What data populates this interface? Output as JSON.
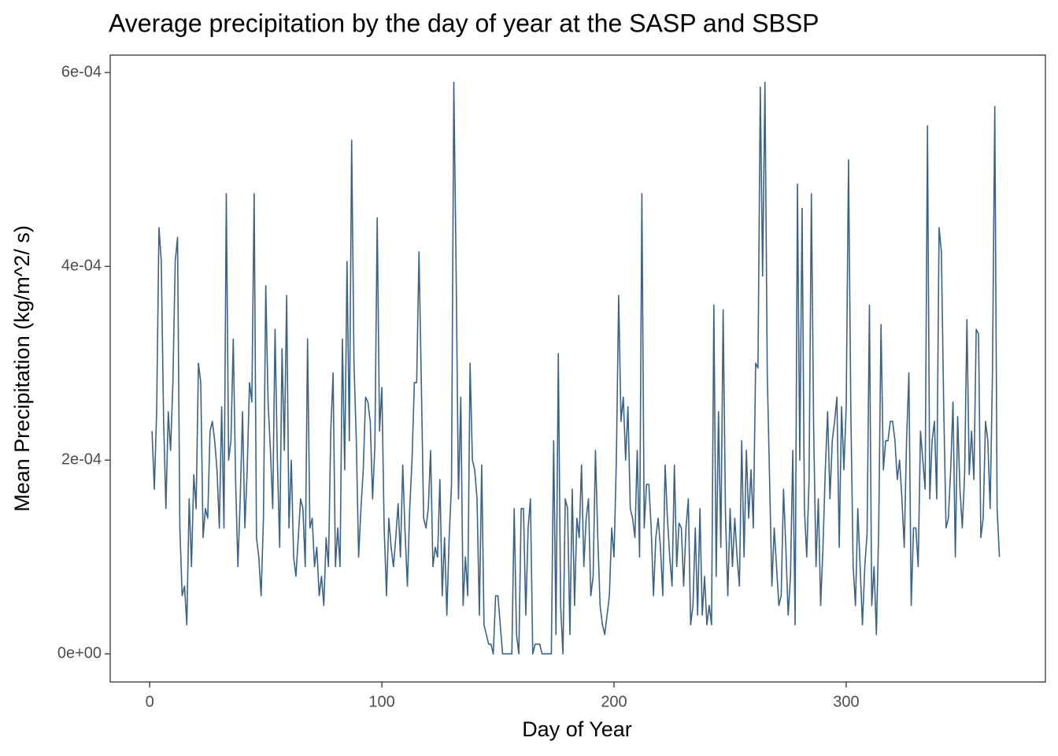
{
  "chart_data": {
    "type": "line",
    "title": "Average precipitation by the day of year at the SASP and SBSP",
    "x_label": "Day of Year",
    "y_label": "Mean Precipitation (kg/m^2/ s)",
    "color": "#3b6387",
    "xlim": [
      -17,
      385.8
    ],
    "ylim": [
      -2.9e-05,
      0.000618
    ],
    "xticks": [
      0,
      100,
      200,
      300
    ],
    "yticks": [
      {
        "value": 0,
        "label": "0e+00"
      },
      {
        "value": 0.0002,
        "label": "2e-04"
      },
      {
        "value": 0.0004,
        "label": "4e-04"
      },
      {
        "value": 0.0006,
        "label": "6e-04"
      }
    ],
    "grid": false,
    "x": [
      1,
      2,
      3,
      4,
      5,
      6,
      7,
      8,
      9,
      10,
      11,
      12,
      13,
      14,
      15,
      16,
      17,
      18,
      19,
      20,
      21,
      22,
      23,
      24,
      25,
      26,
      27,
      28,
      29,
      30,
      31,
      32,
      33,
      34,
      35,
      36,
      37,
      38,
      39,
      40,
      41,
      42,
      43,
      44,
      45,
      46,
      47,
      48,
      49,
      50,
      51,
      52,
      53,
      54,
      55,
      56,
      57,
      58,
      59,
      60,
      61,
      62,
      63,
      64,
      65,
      66,
      67,
      68,
      69,
      70,
      71,
      72,
      73,
      74,
      75,
      76,
      77,
      78,
      79,
      80,
      81,
      82,
      83,
      84,
      85,
      86,
      87,
      88,
      89,
      90,
      91,
      92,
      93,
      94,
      95,
      96,
      97,
      98,
      99,
      100,
      101,
      102,
      103,
      104,
      105,
      106,
      107,
      108,
      109,
      110,
      111,
      112,
      113,
      114,
      115,
      116,
      117,
      118,
      119,
      120,
      121,
      122,
      123,
      124,
      125,
      126,
      127,
      128,
      129,
      130,
      131,
      132,
      133,
      134,
      135,
      136,
      137,
      138,
      139,
      140,
      141,
      142,
      143,
      144,
      145,
      146,
      147,
      148,
      149,
      150,
      151,
      152,
      153,
      154,
      155,
      156,
      157,
      158,
      159,
      160,
      161,
      162,
      163,
      164,
      165,
      166,
      167,
      168,
      169,
      170,
      171,
      172,
      173,
      174,
      175,
      176,
      177,
      178,
      179,
      180,
      181,
      182,
      183,
      184,
      185,
      186,
      187,
      188,
      189,
      190,
      191,
      192,
      193,
      194,
      195,
      196,
      197,
      198,
      199,
      200,
      201,
      202,
      203,
      204,
      205,
      206,
      207,
      208,
      209,
      210,
      211,
      212,
      213,
      214,
      215,
      216,
      217,
      218,
      219,
      220,
      221,
      222,
      223,
      224,
      225,
      226,
      227,
      228,
      229,
      230,
      231,
      232,
      233,
      234,
      235,
      236,
      237,
      238,
      239,
      240,
      241,
      242,
      243,
      244,
      245,
      246,
      247,
      248,
      249,
      250,
      251,
      252,
      253,
      254,
      255,
      256,
      257,
      258,
      259,
      260,
      261,
      262,
      263,
      264,
      265,
      266,
      267,
      268,
      269,
      270,
      271,
      272,
      273,
      274,
      275,
      276,
      277,
      278,
      279,
      280,
      281,
      282,
      283,
      284,
      285,
      286,
      287,
      288,
      289,
      290,
      291,
      292,
      293,
      294,
      295,
      296,
      297,
      298,
      299,
      300,
      301,
      302,
      303,
      304,
      305,
      306,
      307,
      308,
      309,
      310,
      311,
      312,
      313,
      314,
      315,
      316,
      317,
      318,
      319,
      320,
      321,
      322,
      323,
      324,
      325,
      326,
      327,
      328,
      329,
      330,
      331,
      332,
      333,
      334,
      335,
      336,
      337,
      338,
      339,
      340,
      341,
      342,
      343,
      344,
      345,
      346,
      347,
      348,
      349,
      350,
      351,
      352,
      353,
      354,
      355,
      356,
      357,
      358,
      359,
      360,
      361,
      362,
      363,
      364,
      365,
      366
    ],
    "values": [
      0.00023,
      0.00017,
      0.00025,
      0.00044,
      0.000405,
      0.00024,
      0.00015,
      0.00025,
      0.00021,
      0.00028,
      0.000405,
      0.00043,
      0.00013,
      6e-05,
      7e-05,
      3e-05,
      0.00016,
      9e-05,
      0.000185,
      0.00015,
      0.0003,
      0.00028,
      0.00012,
      0.00015,
      0.00014,
      0.00023,
      0.00024,
      0.00022,
      0.00019,
      0.00013,
      0.000255,
      0.00013,
      0.000475,
      0.0002,
      0.00022,
      0.000325,
      0.00018,
      9e-05,
      0.00016,
      0.00025,
      0.00013,
      0.00019,
      0.00028,
      0.00026,
      0.000475,
      0.00012,
      0.0001,
      6e-05,
      0.00014,
      0.00038,
      0.00026,
      0.00021,
      0.00015,
      0.000335,
      0.0002,
      0.00011,
      0.000315,
      0.00021,
      0.00037,
      0.00013,
      0.0002,
      0.0001,
      8e-05,
      0.00012,
      0.00016,
      0.00015,
      9e-05,
      0.000325,
      0.00013,
      0.00014,
      9e-05,
      0.00011,
      6e-05,
      8e-05,
      5e-05,
      0.00012,
      9e-05,
      0.00023,
      0.00029,
      9e-05,
      0.00013,
      9e-05,
      0.000325,
      0.00019,
      0.000405,
      0.00022,
      0.00053,
      0.0003,
      0.00022,
      0.0001,
      0.00015,
      0.00019,
      0.000265,
      0.00026,
      0.00024,
      0.00016,
      0.000215,
      0.00045,
      0.00023,
      0.000275,
      0.00013,
      6e-05,
      0.00014,
      0.00011,
      9e-05,
      0.00012,
      0.000155,
      0.0001,
      0.000195,
      0.000125,
      7e-05,
      0.00015,
      0.0002,
      0.00028,
      0.00028,
      0.000415,
      0.00028,
      0.00014,
      0.00013,
      0.00015,
      0.00021,
      9e-05,
      0.00011,
      0.0001,
      0.00018,
      6e-05,
      0.00012,
      4e-05,
      0.00012,
      0.000175,
      0.00059,
      0.000395,
      0.00016,
      0.000265,
      5e-05,
      0.0001,
      6e-05,
      0.0003,
      0.0002,
      0.00019,
      0.00016,
      4e-05,
      0.000195,
      3e-05,
      2e-05,
      1e-05,
      1e-05,
      0,
      6e-05,
      6e-05,
      3e-05,
      0,
      0,
      0,
      0,
      0,
      0.00015,
      2e-05,
      0,
      0.00015,
      0.00015,
      4e-05,
      0.00013,
      0.00016,
      0,
      1e-05,
      1e-05,
      1e-05,
      0,
      0,
      0,
      0,
      0,
      0.00022,
      2e-05,
      0.00031,
      5e-05,
      0,
      0.00016,
      0.00015,
      2e-05,
      0.00017,
      5e-05,
      0.00014,
      0.00012,
      0.000195,
      9e-05,
      0.00014,
      0.00016,
      6e-05,
      8e-05,
      0.00021,
      0.00012,
      5e-05,
      3e-05,
      2e-05,
      4e-05,
      6e-05,
      0.00013,
      0.0001,
      0.0002,
      0.00037,
      0.00024,
      0.000265,
      0.0002,
      0.000255,
      0.00015,
      0.00014,
      0.00012,
      0.00021,
      0.0001,
      0.000475,
      0.00013,
      0.000175,
      0.000175,
      0.00013,
      6e-05,
      0.00012,
      0.00014,
      0.00011,
      6e-05,
      0.000195,
      0.00014,
      0.0001,
      7e-05,
      0.000195,
      9e-05,
      0.000135,
      0.00013,
      7e-05,
      0.00013,
      0.00016,
      3e-05,
      5e-05,
      0.00013,
      4e-05,
      0.00015,
      4e-05,
      8e-05,
      3e-05,
      5e-05,
      3e-05,
      0.00036,
      8e-05,
      0.00025,
      0.00011,
      0.000355,
      0.000145,
      6e-05,
      0.00015,
      9e-05,
      0.00014,
      0.0001,
      7e-05,
      0.00022,
      0.0001,
      0.00021,
      0.00014,
      0.00019,
      0.00013,
      0.0003,
      0.000295,
      0.000585,
      0.00039,
      0.00059,
      0.00029,
      0.00018,
      7e-05,
      0.00013,
      9e-05,
      5e-05,
      6e-05,
      0.00017,
      0.00011,
      4e-05,
      8e-05,
      0.00021,
      3e-05,
      0.000485,
      0.0002,
      0.00046,
      0.00015,
      0.0001,
      0.00018,
      0.000475,
      0.00023,
      9e-05,
      0.00016,
      5e-05,
      0.00011,
      0.00019,
      0.00025,
      0.00016,
      0.00022,
      0.00024,
      0.000265,
      0.00011,
      0.000255,
      0.00019,
      0.000255,
      0.00051,
      0.00025,
      9e-05,
      5e-05,
      0.00015,
      9e-05,
      3e-05,
      9e-05,
      0.000125,
      0.00036,
      5e-05,
      9e-05,
      2e-05,
      0.00013,
      0.00034,
      0.00019,
      0.00022,
      0.00022,
      0.00024,
      0.00024,
      0.00022,
      0.00018,
      0.0002,
      0.00016,
      0.00011,
      0.00022,
      0.00029,
      5e-05,
      0.00013,
      0.00013,
      9e-05,
      0.00023,
      0.0002,
      0.00017,
      0.000545,
      0.00016,
      0.00022,
      0.00024,
      0.00016,
      0.00044,
      0.000415,
      0.000255,
      0.00013,
      0.00014,
      0.00019,
      0.00026,
      0.0001,
      0.000245,
      0.00017,
      0.00013,
      0.000185,
      0.000345,
      0.000185,
      0.00023,
      0.00018,
      0.000335,
      0.00033,
      0.00012,
      0.00014,
      0.00024,
      0.00022,
      0.00015,
      0.00029,
      0.000565,
      0.00015,
      0.0001
    ]
  }
}
